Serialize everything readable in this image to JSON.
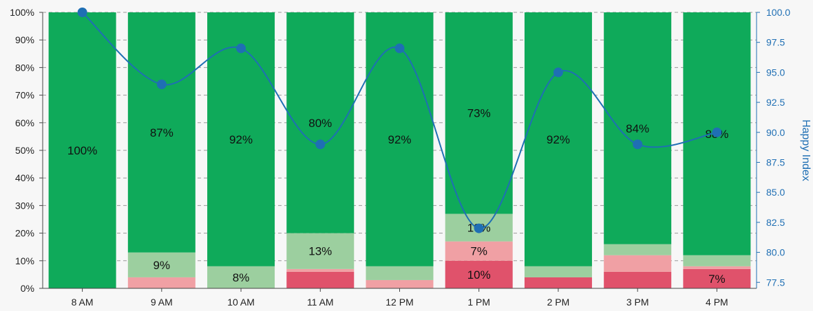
{
  "chart_data": {
    "type": "bar",
    "stacked": true,
    "categories": [
      "8 AM",
      "9 AM",
      "10 AM",
      "11 AM",
      "12 PM",
      "1 PM",
      "2 PM",
      "3 PM",
      "4 PM"
    ],
    "series": [
      {
        "values": [
          0,
          0,
          0,
          6,
          0,
          10,
          4,
          6,
          7
        ],
        "color": "#e0526b"
      },
      {
        "values": [
          0,
          4,
          0,
          1,
          3,
          7,
          0,
          6,
          1
        ],
        "color": "#f0a0a4"
      },
      {
        "values": [
          0,
          9,
          8,
          13,
          5,
          10,
          4,
          4,
          4
        ],
        "color": "#9ccf9f"
      },
      {
        "values": [
          100,
          87,
          92,
          80,
          92,
          73,
          92,
          84,
          88
        ],
        "color": "#0faa5a"
      }
    ],
    "segment_labels": [
      [
        "",
        "",
        "",
        "",
        "",
        "10%",
        "",
        "",
        "7%"
      ],
      [
        "",
        "",
        "",
        "",
        "",
        "7%",
        "",
        "",
        ""
      ],
      [
        "",
        "9%",
        "8%",
        "13%",
        "",
        "10%",
        "",
        "",
        ""
      ],
      [
        "100%",
        "87%",
        "92%",
        "80%",
        "92%",
        "73%",
        "92%",
        "84%",
        "88%"
      ]
    ],
    "ylim_left": [
      0,
      100
    ],
    "yticks_left": [
      "0%",
      "10%",
      "20%",
      "30%",
      "40%",
      "50%",
      "60%",
      "70%",
      "80%",
      "90%",
      "100%"
    ],
    "line": {
      "name": "Happy Index",
      "values": [
        100.0,
        94.0,
        97.0,
        89.0,
        97.0,
        82.0,
        95.0,
        89.0,
        90.0
      ],
      "color": "#1f6fb4"
    },
    "ylabel_right": "Happy Index",
    "ylim_right": [
      77,
      100
    ],
    "yticks_right": [
      "77.5",
      "80.0",
      "82.5",
      "85.0",
      "87.5",
      "90.0",
      "92.5",
      "95.0",
      "97.5",
      "100.0"
    ],
    "grid": true
  }
}
